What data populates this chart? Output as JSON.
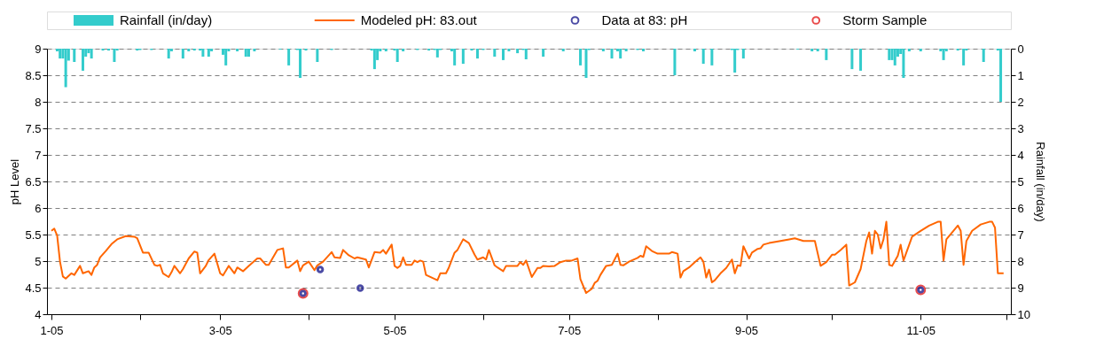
{
  "chart_data": {
    "type": "line",
    "ylabel": "pH Level",
    "y2label": "Rainfall (in/day)",
    "xlim": [
      "2005-01-01",
      "2005-12-01"
    ],
    "xticks": [
      {
        "value": "2005-01-01",
        "label": "1-05"
      },
      {
        "value": "2005-02-01",
        "label": null
      },
      {
        "value": "2005-03-01",
        "label": "3-05"
      },
      {
        "value": "2005-04-01",
        "label": null
      },
      {
        "value": "2005-05-01",
        "label": "5-05"
      },
      {
        "value": "2005-06-01",
        "label": null
      },
      {
        "value": "2005-07-01",
        "label": "7-05"
      },
      {
        "value": "2005-08-01",
        "label": null
      },
      {
        "value": "2005-09-01",
        "label": "9-05"
      },
      {
        "value": "2005-10-01",
        "label": null
      },
      {
        "value": "2005-11-01",
        "label": "11-05"
      },
      {
        "value": "2005-12-01",
        "label": null
      }
    ],
    "ylim": [
      4,
      9
    ],
    "yticks": [
      4,
      4.5,
      5,
      5.5,
      6,
      6.5,
      7,
      7.5,
      8,
      8.5,
      9
    ],
    "y2lim": [
      10,
      0
    ],
    "y2ticks": [
      0,
      1,
      2,
      3,
      4,
      5,
      6,
      7,
      8,
      9,
      10
    ],
    "grid": "y",
    "legend": "top",
    "series": [
      {
        "name": "Rainfall (in/day)",
        "type": "bar",
        "axis": "y2",
        "color": "#33cccc",
        "x": [
          "2005-01-03",
          "2005-01-04",
          "2005-01-05",
          "2005-01-06",
          "2005-01-07",
          "2005-01-09",
          "2005-01-12",
          "2005-01-13",
          "2005-01-14",
          "2005-01-15",
          "2005-01-19",
          "2005-01-21",
          "2005-01-23",
          "2005-01-24",
          "2005-01-31",
          "2005-02-01",
          "2005-02-05",
          "2005-02-11",
          "2005-02-12",
          "2005-02-16",
          "2005-02-18",
          "2005-02-20",
          "2005-02-22",
          "2005-02-23",
          "2005-02-25",
          "2005-02-26",
          "2005-03-02",
          "2005-03-03",
          "2005-03-04",
          "2005-03-07",
          "2005-03-10",
          "2005-03-11",
          "2005-03-13",
          "2005-03-22",
          "2005-03-25",
          "2005-03-28",
          "2005-03-29",
          "2005-03-31",
          "2005-04-04",
          "2005-04-09",
          "2005-04-23",
          "2005-04-24",
          "2005-04-25",
          "2005-04-26",
          "2005-04-28",
          "2005-05-01",
          "2005-05-02",
          "2005-05-04",
          "2005-05-09",
          "2005-05-13",
          "2005-05-15",
          "2005-05-16",
          "2005-05-17",
          "2005-05-21",
          "2005-05-22",
          "2005-05-25",
          "2005-05-28",
          "2005-05-30",
          "2005-06-01",
          "2005-06-05",
          "2005-06-08",
          "2005-06-10",
          "2005-06-13",
          "2005-06-15",
          "2005-06-16",
          "2005-06-22",
          "2005-06-29",
          "2005-07-05",
          "2005-07-07",
          "2005-07-08",
          "2005-07-13",
          "2005-07-16",
          "2005-07-18",
          "2005-07-19",
          "2005-07-21",
          "2005-07-25",
          "2005-07-27",
          "2005-08-07",
          "2005-08-14",
          "2005-08-17",
          "2005-08-20",
          "2005-08-27",
          "2005-08-28",
          "2005-08-29",
          "2005-08-31",
          "2005-09-19",
          "2005-09-24",
          "2005-09-26",
          "2005-09-29",
          "2005-10-08",
          "2005-10-11",
          "2005-10-21",
          "2005-10-22",
          "2005-10-23",
          "2005-10-24",
          "2005-10-25",
          "2005-10-26",
          "2005-10-28",
          "2005-11-01",
          "2005-11-08",
          "2005-11-09",
          "2005-11-10",
          "2005-11-14",
          "2005-11-16",
          "2005-11-17",
          "2005-11-23",
          "2005-11-28",
          "2005-11-29"
        ],
        "values": [
          0.1,
          0.37,
          0.37,
          1.45,
          0.45,
          0.5,
          0.83,
          0.3,
          0.17,
          0.37,
          0.07,
          0.07,
          0.5,
          0.07,
          0.07,
          0.05,
          0.05,
          0.37,
          0.1,
          0.37,
          0.1,
          0.07,
          0.07,
          0.3,
          0.3,
          0.1,
          0.23,
          0.63,
          0.1,
          0.1,
          0.3,
          0.3,
          0.1,
          0.03,
          0.63,
          0.05,
          1.1,
          0.07,
          0.5,
          0.05,
          0.07,
          0.77,
          0.43,
          0.1,
          0.1,
          0.07,
          0.5,
          0.1,
          0.05,
          0.07,
          0.05,
          0.33,
          0.05,
          0.1,
          0.63,
          0.57,
          0.07,
          0.37,
          0.05,
          0.3,
          0.43,
          0.1,
          0.17,
          0.05,
          0.4,
          0.3,
          0.1,
          0.63,
          1.1,
          0.05,
          0.1,
          0.37,
          0.1,
          0.37,
          0.1,
          0.05,
          0.1,
          1.0,
          0.1,
          0.57,
          0.63,
          0.05,
          0.9,
          0.05,
          0.37,
          0.03,
          0.1,
          0.1,
          0.43,
          0.77,
          0.83,
          0.43,
          0.43,
          0.63,
          0.3,
          0.2,
          1.1,
          0.1,
          0.1,
          0.1,
          0.43,
          0.1,
          0.07,
          0.63,
          0.07,
          0.5,
          0.07,
          2.0
        ]
      },
      {
        "name": "Modeled pH: 83.out",
        "axis": "y",
        "color": "#ff6600",
        "x": [
          "2005-01-01",
          "2005-01-02",
          "2005-01-03",
          "2005-01-04",
          "2005-01-05",
          "2005-01-06",
          "2005-01-08",
          "2005-01-09",
          "2005-01-11",
          "2005-01-12",
          "2005-01-14",
          "2005-01-15",
          "2005-01-16",
          "2005-01-17",
          "2005-01-18",
          "2005-01-20",
          "2005-01-22",
          "2005-01-24",
          "2005-01-27",
          "2005-01-30",
          "2005-01-31",
          "2005-02-02",
          "2005-02-04",
          "2005-02-06",
          "2005-02-07",
          "2005-02-08",
          "2005-02-09",
          "2005-02-11",
          "2005-02-12",
          "2005-02-13",
          "2005-02-15",
          "2005-02-16",
          "2005-02-18",
          "2005-02-20",
          "2005-02-21",
          "2005-02-22",
          "2005-02-24",
          "2005-02-25",
          "2005-02-27",
          "2005-03-01",
          "2005-03-02",
          "2005-03-04",
          "2005-03-06",
          "2005-03-07",
          "2005-03-09",
          "2005-03-11",
          "2005-03-14",
          "2005-03-15",
          "2005-03-17",
          "2005-03-18",
          "2005-03-21",
          "2005-03-23",
          "2005-03-24",
          "2005-03-25",
          "2005-03-28",
          "2005-03-29",
          "2005-03-30",
          "2005-04-01",
          "2005-04-03",
          "2005-04-04",
          "2005-04-06",
          "2005-04-09",
          "2005-04-10",
          "2005-04-12",
          "2005-04-13",
          "2005-04-15",
          "2005-04-17",
          "2005-04-18",
          "2005-04-21",
          "2005-04-22",
          "2005-04-24",
          "2005-04-26",
          "2005-04-27",
          "2005-04-28",
          "2005-04-30",
          "2005-05-01",
          "2005-05-02",
          "2005-05-03",
          "2005-05-04",
          "2005-05-05",
          "2005-05-07",
          "2005-05-08",
          "2005-05-09",
          "2005-05-10",
          "2005-05-11",
          "2005-05-12",
          "2005-05-14",
          "2005-05-16",
          "2005-05-17",
          "2005-05-19",
          "2005-05-20",
          "2005-05-22",
          "2005-05-23",
          "2005-05-25",
          "2005-05-27",
          "2005-05-29",
          "2005-05-30",
          "2005-06-01",
          "2005-06-02",
          "2005-06-03",
          "2005-06-05",
          "2005-06-06",
          "2005-06-08",
          "2005-06-09",
          "2005-06-13",
          "2005-06-14",
          "2005-06-15",
          "2005-06-16",
          "2005-06-18",
          "2005-06-20",
          "2005-06-21",
          "2005-06-22",
          "2005-06-24",
          "2005-06-26",
          "2005-06-28",
          "2005-06-30",
          "2005-07-02",
          "2005-07-04",
          "2005-07-05",
          "2005-07-07",
          "2005-07-09",
          "2005-07-10",
          "2005-07-11",
          "2005-07-12",
          "2005-07-14",
          "2005-07-16",
          "2005-07-18",
          "2005-07-19",
          "2005-07-20",
          "2005-07-22",
          "2005-07-25",
          "2005-07-26",
          "2005-07-27",
          "2005-07-28",
          "2005-07-30",
          "2005-08-01",
          "2005-08-05",
          "2005-08-06",
          "2005-08-08",
          "2005-08-09",
          "2005-08-10",
          "2005-08-12",
          "2005-08-14",
          "2005-08-16",
          "2005-08-17",
          "2005-08-18",
          "2005-08-19",
          "2005-08-20",
          "2005-08-21",
          "2005-08-23",
          "2005-08-25",
          "2005-08-27",
          "2005-08-28",
          "2005-08-29",
          "2005-08-30",
          "2005-08-31",
          "2005-09-02",
          "2005-09-03",
          "2005-09-05",
          "2005-09-06",
          "2005-09-07",
          "2005-09-09",
          "2005-09-13",
          "2005-09-16",
          "2005-09-18",
          "2005-09-21",
          "2005-09-25",
          "2005-09-27",
          "2005-09-29",
          "2005-10-01",
          "2005-10-02",
          "2005-10-04",
          "2005-10-06",
          "2005-10-07",
          "2005-10-09",
          "2005-10-11",
          "2005-10-13",
          "2005-10-14",
          "2005-10-15",
          "2005-10-16",
          "2005-10-17",
          "2005-10-18",
          "2005-10-19",
          "2005-10-20",
          "2005-10-21",
          "2005-10-22",
          "2005-10-24",
          "2005-10-25",
          "2005-10-26",
          "2005-10-29",
          "2005-11-01",
          "2005-11-04",
          "2005-11-07",
          "2005-11-08",
          "2005-11-09",
          "2005-11-10",
          "2005-11-14",
          "2005-11-15",
          "2005-11-16",
          "2005-11-17",
          "2005-11-19",
          "2005-11-22",
          "2005-11-25",
          "2005-11-26",
          "2005-11-27",
          "2005-11-28",
          "2005-11-30"
        ],
        "values": [
          5.57,
          5.61,
          5.48,
          4.99,
          4.71,
          4.67,
          4.77,
          4.74,
          4.91,
          4.77,
          4.81,
          4.74,
          4.88,
          4.93,
          5.07,
          5.19,
          5.32,
          5.41,
          5.47,
          5.46,
          5.43,
          5.16,
          5.16,
          4.93,
          4.91,
          4.93,
          4.77,
          4.7,
          4.79,
          4.91,
          4.77,
          4.85,
          5.05,
          5.18,
          5.16,
          4.77,
          4.91,
          5.02,
          5.14,
          4.77,
          4.73,
          4.91,
          4.77,
          4.88,
          4.81,
          4.91,
          5.05,
          5.05,
          4.93,
          4.93,
          5.21,
          5.24,
          4.88,
          4.88,
          5.01,
          4.81,
          4.92,
          4.99,
          4.83,
          4.92,
          4.99,
          5.17,
          5.07,
          5.06,
          5.21,
          5.11,
          5.05,
          5.07,
          5.03,
          4.88,
          5.17,
          5.16,
          5.21,
          5.14,
          5.31,
          4.91,
          4.87,
          4.91,
          5.07,
          4.93,
          4.93,
          5.01,
          4.98,
          5.01,
          4.99,
          4.74,
          4.69,
          4.64,
          4.77,
          4.77,
          4.88,
          5.16,
          5.21,
          5.41,
          5.34,
          5.12,
          5.03,
          5.07,
          5.03,
          5.21,
          4.92,
          4.88,
          4.81,
          4.91,
          4.91,
          4.98,
          4.93,
          5.01,
          4.7,
          4.87,
          4.87,
          4.91,
          4.9,
          4.91,
          4.98,
          5.01,
          5.01,
          5.05,
          4.66,
          4.4,
          4.48,
          4.59,
          4.63,
          4.74,
          4.91,
          4.93,
          5.14,
          4.93,
          4.92,
          4.99,
          5.06,
          5.1,
          5.08,
          5.28,
          5.19,
          5.14,
          5.14,
          5.17,
          5.14,
          4.69,
          4.81,
          4.88,
          4.98,
          5.07,
          4.99,
          4.69,
          4.84,
          4.6,
          4.64,
          4.77,
          4.87,
          5.03,
          4.77,
          4.92,
          4.91,
          5.28,
          5.05,
          5.16,
          5.23,
          5.24,
          5.31,
          5.34,
          5.38,
          5.41,
          5.43,
          5.38,
          5.38,
          4.91,
          4.98,
          5.12,
          5.12,
          5.21,
          5.31,
          4.54,
          4.6,
          4.85,
          5.38,
          5.54,
          5.14,
          5.57,
          5.5,
          5.24,
          5.41,
          5.74,
          4.93,
          4.91,
          5.1,
          5.31,
          5.01,
          5.46,
          5.57,
          5.67,
          5.74,
          5.74,
          5.01,
          5.41,
          5.67,
          5.57,
          4.93,
          5.38,
          5.57,
          5.69,
          5.74,
          5.74,
          5.63,
          4.77,
          4.77
        ]
      },
      {
        "name": "Data at 83: pH",
        "type": "scatter",
        "axis": "y",
        "color": "#000080",
        "marker": "circle",
        "x": [
          "2005-03-30",
          "2005-04-05",
          "2005-04-19",
          "2005-11-01"
        ],
        "values": [
          4.39,
          4.84,
          4.49,
          4.46
        ]
      },
      {
        "name": "Storm Sample",
        "type": "scatter",
        "axis": "y",
        "color": "#e00000",
        "marker": "circle",
        "x": [
          "2005-03-30",
          "2005-11-01"
        ],
        "values": [
          4.39,
          4.46
        ]
      }
    ]
  }
}
